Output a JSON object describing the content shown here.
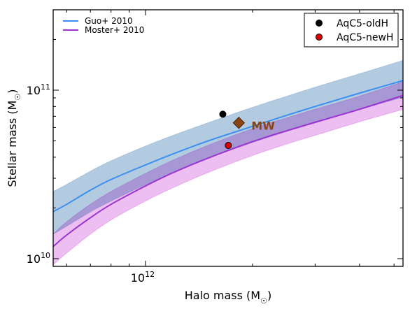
{
  "chart_data": {
    "type": "line",
    "title": "",
    "xlabel": "Halo mass (M",
    "xlabel_sub": "☉",
    "xlabel_close": ")",
    "ylabel": "Stellar mass (M",
    "ylabel_sub": "☉",
    "ylabel_close": ")",
    "xscale": "log",
    "yscale": "log",
    "xlim": [
      550000000000.0,
      5300000000000.0
    ],
    "ylim": [
      9000000000.0,
      300000000000.0
    ],
    "grid": false,
    "x_ticks": [
      {
        "value": 1000000000000.0,
        "base": "10",
        "exp": "12"
      }
    ],
    "y_ticks": [
      {
        "value": 10000000000.0,
        "base": "10",
        "exp": "10"
      },
      {
        "value": 100000000000.0,
        "base": "10",
        "exp": "11"
      }
    ],
    "series": [
      {
        "name": "Guo+ 2010",
        "color": "#3a8ff0",
        "band_color": "#a6c2dc",
        "x": [
          550000000000.0,
          600000000000.0,
          700000000000.0,
          800000000000.0,
          1000000000000.0,
          1200000000000.0,
          1500000000000.0,
          2000000000000.0,
          2500000000000.0,
          3000000000000.0,
          4000000000000.0,
          5300000000000.0
        ],
        "y": [
          19000000000.0,
          21000000000.0,
          25500000000.0,
          29500000000.0,
          36000000000.0,
          42000000000.0,
          50000000000.0,
          61000000000.0,
          71000000000.0,
          80000000000.0,
          96000000000.0,
          114000000000.0
        ],
        "y_low": [
          14000000000.0,
          15600000000.0,
          19000000000.0,
          22000000000.0,
          27500000000.0,
          32500000000.0,
          39500000000.0,
          49000000000.0,
          57000000000.0,
          64000000000.0,
          77000000000.0,
          91000000000.0
        ],
        "y_high": [
          25000000000.0,
          27500000000.0,
          33000000000.0,
          38000000000.0,
          46500000000.0,
          54000000000.0,
          64000000000.0,
          79000000000.0,
          92000000000.0,
          104000000000.0,
          125000000000.0,
          150000000000.0
        ]
      },
      {
        "name": "Moster+ 2010",
        "color": "#9b35d0",
        "band_color": "#e7a8ec",
        "x": [
          550000000000.0,
          600000000000.0,
          700000000000.0,
          800000000000.0,
          1000000000000.0,
          1200000000000.0,
          1500000000000.0,
          2000000000000.0,
          2500000000000.0,
          3000000000000.0,
          4000000000000.0,
          5300000000000.0
        ],
        "y": [
          11800000000.0,
          13800000000.0,
          17500000000.0,
          21000000000.0,
          27000000000.0,
          32500000000.0,
          39500000000.0,
          49500000000.0,
          57500000000.0,
          64500000000.0,
          77000000000.0,
          93000000000.0
        ],
        "y_low": [
          9200000000.0,
          10800000000.0,
          14000000000.0,
          17000000000.0,
          22000000000.0,
          26500000000.0,
          32500000000.0,
          41000000000.0,
          48000000000.0,
          54000000000.0,
          65000000000.0,
          77000000000.0
        ],
        "y_high": [
          14000000000.0,
          16500000000.0,
          21000000000.0,
          25000000000.0,
          32000000000.0,
          38500000000.0,
          47000000000.0,
          59000000000.0,
          68500000000.0,
          77000000000.0,
          92000000000.0,
          112000000000.0
        ]
      }
    ],
    "points": [
      {
        "name": "AqC5-oldH",
        "x": 1650000000000.0,
        "y": 72000000000.0,
        "color": "#000000",
        "edge": "#000000",
        "marker": "circle"
      },
      {
        "name": "AqC5-newH",
        "x": 1710000000000.0,
        "y": 47000000000.0,
        "color": "#e00000",
        "edge": "#000000",
        "marker": "circle"
      }
    ],
    "annotation": {
      "label": "MW",
      "x": 1830000000000.0,
      "y": 64000000000.0,
      "color": "#8b4513",
      "marker": "diamond"
    },
    "legends": [
      {
        "placement": "upper-left",
        "entries": [
          "Guo+ 2010",
          "Moster+ 2010"
        ]
      },
      {
        "placement": "upper-right",
        "entries": [
          "AqC5-oldH",
          "AqC5-newH"
        ]
      }
    ]
  }
}
